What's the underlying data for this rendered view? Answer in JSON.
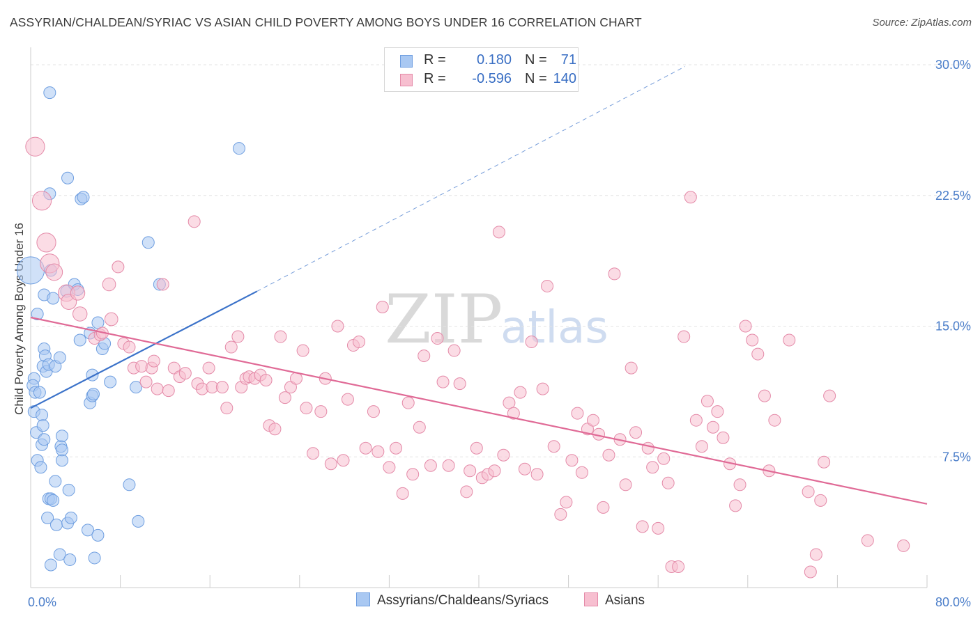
{
  "header": {
    "title": "ASSYRIAN/CHALDEAN/SYRIAC VS ASIAN CHILD POVERTY AMONG BOYS UNDER 16 CORRELATION CHART",
    "source": "Source: ZipAtlas.com"
  },
  "watermark": {
    "zip": "ZIP",
    "atlas": "atlas"
  },
  "legend": {
    "rows": [
      {
        "r_label": "R =",
        "r_value": "0.180",
        "n_label": "N =",
        "n_value": "71",
        "color": "#a9c8f2",
        "border": "#6e9ee0"
      },
      {
        "r_label": "R =",
        "r_value": "-0.596",
        "n_label": "N =",
        "n_value": "140",
        "color": "#f7bfd0",
        "border": "#e48aa8"
      }
    ]
  },
  "bottom_legend": {
    "items": [
      {
        "label": "Assyrians/Chaldeans/Syriacs",
        "color": "#a9c8f2",
        "border": "#6e9ee0"
      },
      {
        "label": "Asians",
        "color": "#f7bfd0",
        "border": "#e48aa8"
      }
    ]
  },
  "chart_data": {
    "type": "scatter",
    "title": "ASSYRIAN/CHALDEAN/SYRIAC VS ASIAN CHILD POVERTY AMONG BOYS UNDER 16 CORRELATION CHART",
    "xlabel": "",
    "ylabel": "Child Poverty Among Boys Under 16",
    "xlim": [
      0,
      80
    ],
    "ylim": [
      0,
      31
    ],
    "x_ticks": {
      "positions": [
        0,
        80
      ],
      "labels": [
        "0.0%",
        "80.0%"
      ]
    },
    "x_minor_ticks": [
      0,
      8,
      16,
      24,
      32,
      40,
      48,
      56,
      64,
      72,
      80
    ],
    "y_ticks": {
      "positions": [
        7.5,
        15,
        22.5,
        30
      ],
      "labels": [
        "7.5%",
        "15.0%",
        "22.5%",
        "30.0%"
      ]
    },
    "grid": true,
    "legend_position": "top-center",
    "series": [
      {
        "name": "Assyrians/Chaldeans/Syriacs",
        "color": "#a9c8f2",
        "stroke": "#6e9ee0",
        "r": 0.18,
        "n": 71,
        "trend": {
          "x0": 0,
          "y0": 10.3,
          "x1": 20.2,
          "y1": 17.0,
          "dash_to_x": 58.4,
          "dash_to_y": 29.9,
          "color": "#3b72c9"
        },
        "points": [
          [
            0.0,
            18.2,
            2.3
          ],
          [
            0.6,
            15.7,
            1
          ],
          [
            0.3,
            12.0,
            1
          ],
          [
            0.2,
            11.6,
            1
          ],
          [
            0.4,
            11.2,
            1
          ],
          [
            0.8,
            11.2,
            1
          ],
          [
            0.3,
            10.1,
            1
          ],
          [
            0.5,
            8.9,
            1
          ],
          [
            0.6,
            7.3,
            1
          ],
          [
            0.9,
            6.9,
            1
          ],
          [
            1.0,
            9.9,
            1
          ],
          [
            1.1,
            9.3,
            1
          ],
          [
            1.0,
            8.2,
            1
          ],
          [
            1.2,
            8.5,
            1
          ],
          [
            1.1,
            12.7,
            1
          ],
          [
            1.2,
            13.7,
            1
          ],
          [
            1.3,
            13.3,
            1
          ],
          [
            1.4,
            12.4,
            1
          ],
          [
            1.6,
            12.8,
            1
          ],
          [
            1.2,
            16.8,
            1
          ],
          [
            1.6,
            5.1,
            1
          ],
          [
            1.8,
            5.1,
            1
          ],
          [
            1.5,
            4.0,
            1
          ],
          [
            1.8,
            1.3,
            1
          ],
          [
            1.7,
            28.4,
            1
          ],
          [
            1.7,
            22.6,
            1
          ],
          [
            1.8,
            18.2,
            1
          ],
          [
            2.0,
            16.6,
            1
          ],
          [
            2.2,
            12.7,
            1
          ],
          [
            2.2,
            6.1,
            1
          ],
          [
            2.0,
            5.0,
            1
          ],
          [
            2.3,
            3.6,
            1
          ],
          [
            2.6,
            13.2,
            1
          ],
          [
            2.7,
            8.1,
            1
          ],
          [
            2.8,
            8.7,
            1
          ],
          [
            2.8,
            7.3,
            1
          ],
          [
            2.6,
            1.9,
            1
          ],
          [
            2.8,
            7.9,
            1
          ],
          [
            3.2,
            17.0,
            1
          ],
          [
            3.3,
            23.5,
            1
          ],
          [
            3.3,
            3.7,
            1
          ],
          [
            3.4,
            5.6,
            1
          ],
          [
            3.5,
            1.6,
            1
          ],
          [
            3.6,
            4.0,
            1
          ],
          [
            3.9,
            17.4,
            1
          ],
          [
            4.2,
            17.1,
            1
          ],
          [
            4.4,
            14.2,
            1
          ],
          [
            4.5,
            22.3,
            1
          ],
          [
            4.7,
            22.4,
            1
          ],
          [
            5.1,
            3.3,
            1
          ],
          [
            5.3,
            10.6,
            1
          ],
          [
            5.3,
            14.6,
            1
          ],
          [
            5.5,
            12.2,
            1
          ],
          [
            5.5,
            11.0,
            1
          ],
          [
            5.6,
            11.1,
            1
          ],
          [
            5.7,
            1.7,
            1
          ],
          [
            6.0,
            15.2,
            1
          ],
          [
            6.0,
            3.0,
            1
          ],
          [
            6.4,
            13.7,
            1
          ],
          [
            6.6,
            14.0,
            1
          ],
          [
            7.1,
            11.8,
            1
          ],
          [
            8.8,
            5.9,
            1
          ],
          [
            9.4,
            11.5,
            1
          ],
          [
            9.6,
            3.8,
            1
          ],
          [
            10.5,
            19.8,
            1
          ],
          [
            11.5,
            17.4,
            1
          ],
          [
            18.6,
            25.2,
            1
          ]
        ]
      },
      {
        "name": "Asians",
        "color": "#f7bfd0",
        "stroke": "#e48aa8",
        "r": -0.596,
        "n": 140,
        "trend": {
          "x0": 0,
          "y0": 15.5,
          "x1": 80,
          "y1": 4.8,
          "color": "#e06a96"
        },
        "points": [
          [
            0.4,
            25.3,
            1.6
          ],
          [
            1.0,
            22.2,
            1.6
          ],
          [
            1.4,
            19.8,
            1.6
          ],
          [
            1.7,
            18.6,
            1.6
          ],
          [
            2.1,
            18.1,
            1.4
          ],
          [
            3.2,
            16.9,
            1.4
          ],
          [
            3.4,
            16.4,
            1.3
          ],
          [
            4.2,
            16.9,
            1.2
          ],
          [
            4.4,
            15.7,
            1.2
          ],
          [
            5.7,
            14.3,
            1
          ],
          [
            6.2,
            14.5,
            1
          ],
          [
            6.4,
            14.6,
            1
          ],
          [
            7.0,
            17.4,
            1.1
          ],
          [
            7.2,
            15.4,
            1.1
          ],
          [
            7.8,
            18.4,
            1
          ],
          [
            8.3,
            14.0,
            1
          ],
          [
            8.8,
            13.8,
            1
          ],
          [
            9.2,
            12.6,
            1
          ],
          [
            9.9,
            12.7,
            1
          ],
          [
            10.3,
            11.8,
            1
          ],
          [
            10.8,
            12.6,
            1
          ],
          [
            11.0,
            13.0,
            1
          ],
          [
            11.3,
            11.4,
            1
          ],
          [
            11.8,
            17.4,
            1
          ],
          [
            12.3,
            11.3,
            1
          ],
          [
            12.8,
            12.6,
            1
          ],
          [
            13.3,
            12.1,
            1
          ],
          [
            13.8,
            12.3,
            1
          ],
          [
            14.6,
            21.0,
            1
          ],
          [
            14.9,
            11.7,
            1
          ],
          [
            15.3,
            11.4,
            1
          ],
          [
            15.9,
            12.6,
            1
          ],
          [
            16.2,
            11.5,
            1
          ],
          [
            17.1,
            11.5,
            1
          ],
          [
            17.5,
            10.3,
            1
          ],
          [
            17.9,
            13.8,
            1
          ],
          [
            18.5,
            14.4,
            1
          ],
          [
            18.8,
            11.5,
            1
          ],
          [
            19.2,
            12.0,
            1
          ],
          [
            19.5,
            12.1,
            1
          ],
          [
            20.0,
            12.0,
            1
          ],
          [
            20.5,
            12.2,
            1
          ],
          [
            21.0,
            11.9,
            1
          ],
          [
            21.3,
            9.3,
            1
          ],
          [
            21.8,
            9.1,
            1
          ],
          [
            22.3,
            14.4,
            1
          ],
          [
            22.7,
            10.9,
            1
          ],
          [
            23.2,
            11.5,
            1
          ],
          [
            23.7,
            12.0,
            1
          ],
          [
            24.3,
            13.6,
            1
          ],
          [
            24.6,
            10.3,
            1
          ],
          [
            25.2,
            7.7,
            1
          ],
          [
            25.9,
            10.1,
            1
          ],
          [
            26.3,
            12.0,
            1
          ],
          [
            26.8,
            7.1,
            1
          ],
          [
            27.4,
            15.0,
            1
          ],
          [
            27.9,
            7.3,
            1
          ],
          [
            28.3,
            10.8,
            1
          ],
          [
            28.8,
            13.9,
            1
          ],
          [
            29.3,
            14.1,
            1
          ],
          [
            29.9,
            8.0,
            1
          ],
          [
            30.6,
            10.1,
            1
          ],
          [
            31.0,
            7.8,
            1
          ],
          [
            31.4,
            16.1,
            1
          ],
          [
            32.0,
            6.9,
            1
          ],
          [
            32.6,
            8.0,
            1
          ],
          [
            33.2,
            5.4,
            1
          ],
          [
            33.7,
            10.6,
            1
          ],
          [
            34.1,
            6.5,
            1
          ],
          [
            34.7,
            9.2,
            1
          ],
          [
            35.1,
            13.3,
            1
          ],
          [
            35.7,
            7.0,
            1
          ],
          [
            36.3,
            14.3,
            1
          ],
          [
            36.8,
            11.8,
            1
          ],
          [
            37.3,
            7.0,
            1
          ],
          [
            37.8,
            13.6,
            1
          ],
          [
            38.3,
            11.7,
            1
          ],
          [
            38.9,
            5.5,
            1
          ],
          [
            39.2,
            6.7,
            1
          ],
          [
            39.8,
            8.0,
            1
          ],
          [
            40.3,
            6.3,
            1
          ],
          [
            40.8,
            6.5,
            1
          ],
          [
            41.4,
            6.7,
            1
          ],
          [
            41.8,
            20.4,
            1
          ],
          [
            42.2,
            7.6,
            1
          ],
          [
            42.7,
            10.6,
            1
          ],
          [
            43.1,
            10.0,
            1
          ],
          [
            43.7,
            11.2,
            1
          ],
          [
            44.1,
            6.8,
            1
          ],
          [
            44.7,
            14.1,
            1
          ],
          [
            45.2,
            6.5,
            1
          ],
          [
            45.7,
            11.4,
            1
          ],
          [
            46.1,
            17.3,
            1
          ],
          [
            46.7,
            8.1,
            1
          ],
          [
            47.3,
            4.2,
            1
          ],
          [
            47.8,
            4.9,
            1
          ],
          [
            48.3,
            7.3,
            1
          ],
          [
            48.8,
            10.0,
            1
          ],
          [
            49.2,
            6.6,
            1
          ],
          [
            49.7,
            9.1,
            1
          ],
          [
            50.2,
            9.6,
            1
          ],
          [
            50.7,
            8.8,
            1
          ],
          [
            51.1,
            4.6,
            1
          ],
          [
            51.6,
            7.6,
            1
          ],
          [
            52.1,
            18.0,
            1
          ],
          [
            52.6,
            8.5,
            1
          ],
          [
            53.1,
            5.9,
            1
          ],
          [
            53.6,
            12.6,
            1
          ],
          [
            54.0,
            8.9,
            1
          ],
          [
            54.6,
            3.5,
            1
          ],
          [
            55.1,
            8.0,
            1
          ],
          [
            55.5,
            6.9,
            1
          ],
          [
            56.0,
            3.4,
            1
          ],
          [
            56.5,
            7.4,
            1
          ],
          [
            56.9,
            6.0,
            1
          ],
          [
            57.2,
            1.2,
            1
          ],
          [
            57.8,
            1.2,
            1
          ],
          [
            58.3,
            14.4,
            1
          ],
          [
            58.9,
            22.4,
            1
          ],
          [
            59.4,
            9.6,
            1
          ],
          [
            59.9,
            8.1,
            1
          ],
          [
            60.4,
            10.7,
            1
          ],
          [
            60.9,
            9.2,
            1
          ],
          [
            61.3,
            10.1,
            1
          ],
          [
            61.8,
            8.6,
            1
          ],
          [
            62.4,
            7.1,
            1
          ],
          [
            62.9,
            4.7,
            1
          ],
          [
            63.3,
            5.9,
            1
          ],
          [
            63.8,
            15.0,
            1
          ],
          [
            64.4,
            14.2,
            1
          ],
          [
            64.9,
            13.4,
            1
          ],
          [
            65.5,
            11.0,
            1
          ],
          [
            65.9,
            6.7,
            1
          ],
          [
            66.4,
            9.6,
            1
          ],
          [
            67.7,
            14.2,
            1
          ],
          [
            69.4,
            5.5,
            1
          ],
          [
            70.1,
            1.9,
            1
          ],
          [
            70.5,
            5.0,
            1
          ],
          [
            70.8,
            7.2,
            1
          ],
          [
            71.3,
            11.0,
            1
          ],
          [
            69.6,
            0.9,
            1
          ],
          [
            74.7,
            2.7,
            1
          ],
          [
            77.9,
            2.4,
            1
          ]
        ]
      }
    ]
  }
}
